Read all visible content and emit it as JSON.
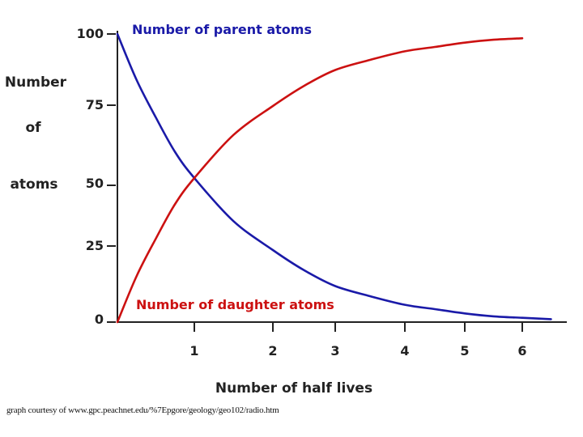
{
  "chart_data": {
    "type": "line",
    "title": "",
    "xlabel": "Number of half lives",
    "ylabel_lines": [
      "Number",
      "of",
      "atoms"
    ],
    "xlim": [
      0,
      6.65
    ],
    "ylim": [
      0,
      100
    ],
    "x_ticks": [
      {
        "value": 1,
        "label": "1"
      },
      {
        "value": 2,
        "label": "2"
      },
      {
        "value": 3,
        "label": "3"
      },
      {
        "value": 4,
        "label": "4"
      },
      {
        "value": 5,
        "label": "5"
      },
      {
        "value": 6,
        "label": "6"
      }
    ],
    "y_ticks": [
      {
        "value": 0,
        "label": "0"
      },
      {
        "value": 25,
        "label": "25"
      },
      {
        "value": 50,
        "label": "50"
      },
      {
        "value": 75,
        "label": "75"
      },
      {
        "value": 100,
        "label": "100"
      }
    ],
    "grid": false,
    "series": [
      {
        "name": "Number of parent atoms",
        "color": "#1a1aa8",
        "x": [
          0,
          0.25,
          0.5,
          0.75,
          1,
          1.5,
          2,
          2.5,
          3,
          3.5,
          4,
          4.5,
          5,
          5.5,
          6,
          6.5
        ],
        "y": [
          100,
          84,
          71,
          59,
          50,
          35,
          25,
          18,
          12.5,
          9,
          6,
          4.5,
          3,
          2,
          1.5,
          1
        ]
      },
      {
        "name": "Number of daughter atoms",
        "color": "#cc1111",
        "x": [
          0,
          0.25,
          0.5,
          0.75,
          1,
          1.5,
          2,
          2.5,
          3,
          3.5,
          4,
          4.5,
          5,
          5.5,
          6
        ],
        "y": [
          0,
          16,
          29,
          41,
          50,
          65,
          75,
          82,
          87.5,
          91,
          94,
          95.5,
          97,
          98,
          98.5
        ]
      }
    ]
  },
  "caption": "graph courtesy of www.gpc.peachnet.edu/%7Epgore/geology/geo102/radio.htm"
}
